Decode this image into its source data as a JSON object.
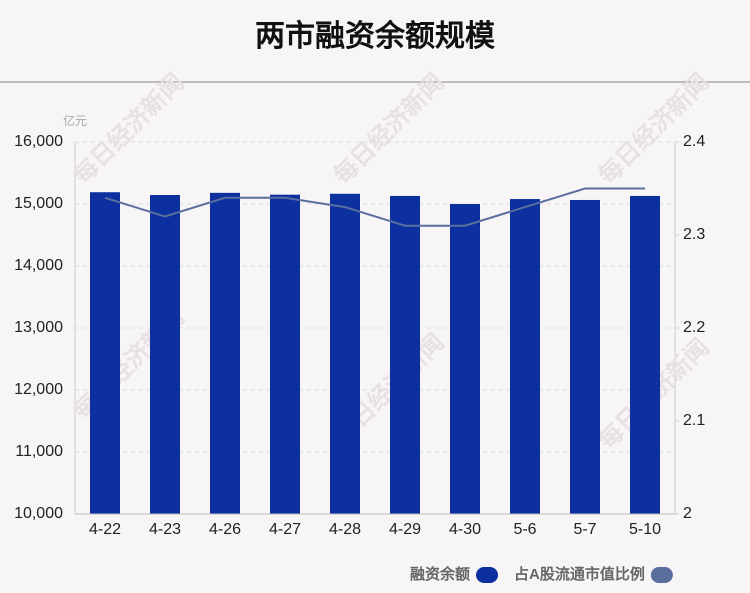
{
  "chart_data": {
    "type": "bar-line",
    "title": "两市融资余额规模",
    "y_unit": "亿元",
    "watermark": "每日经济新闻",
    "categories": [
      "4-22",
      "4-23",
      "4-26",
      "4-27",
      "4-28",
      "4-29",
      "4-30",
      "5-6",
      "5-7",
      "5-10"
    ],
    "series": [
      {
        "name": "融资余额",
        "type": "bar",
        "color": "#0c30a0",
        "values": [
          15190,
          15145,
          15180,
          15150,
          15165,
          15130,
          15000,
          15080,
          15065,
          15130
        ]
      },
      {
        "name": "占A股流通市值比例",
        "type": "line",
        "axis": "y2",
        "color": "#5b6f9e",
        "values": [
          2.34,
          2.32,
          2.34,
          2.34,
          2.33,
          2.31,
          2.31,
          2.33,
          2.35,
          2.35
        ]
      }
    ],
    "ylim": [
      10000,
      16000
    ],
    "yticks": [
      {
        "value": 10000,
        "label": "10,000"
      },
      {
        "value": 11000,
        "label": "11,000"
      },
      {
        "value": 12000,
        "label": "12,000"
      },
      {
        "value": 13000,
        "label": "13,000"
      },
      {
        "value": 14000,
        "label": "14,000"
      },
      {
        "value": 15000,
        "label": "15,000"
      },
      {
        "value": 16000,
        "label": "16,000"
      }
    ],
    "y2lim": [
      2,
      2.4
    ],
    "y2ticks": [
      2,
      2.1,
      2.2,
      2.3,
      2.4
    ],
    "grid": true
  }
}
